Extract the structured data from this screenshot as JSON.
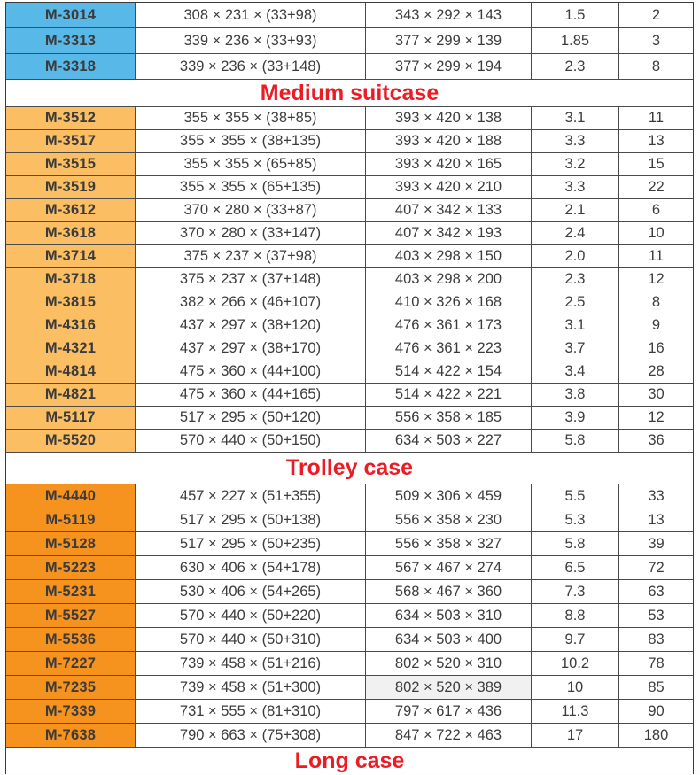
{
  "colors": {
    "blue": "#58B9E8",
    "gold": "#FBBE62",
    "orange": "#F6921E",
    "header_red": "#EC1B24",
    "model_text": "#3b3b3b",
    "highlight": "#F1F1F1"
  },
  "table": {
    "sections": [
      {
        "header": null,
        "model_color": "blue",
        "rows": [
          [
            "M-3014",
            "308 × 231 × (33+98)",
            "343 × 292 × 143",
            "1.5",
            "2"
          ],
          [
            "M-3313",
            "339 × 236 × (33+93)",
            "377 × 299 × 139",
            "1.85",
            "3"
          ],
          [
            "M-3318",
            "339 × 236 × (33+148)",
            "377 × 299 × 194",
            "2.3",
            "8"
          ]
        ]
      },
      {
        "header": "Medium suitcase",
        "model_color": "gold",
        "rows": [
          [
            "M-3512",
            "355 × 355 × (38+85)",
            "393 × 420 × 138",
            "3.1",
            "11"
          ],
          [
            "M-3517",
            "355 × 355 × (38+135)",
            "393 × 420 × 188",
            "3.3",
            "13"
          ],
          [
            "M-3515",
            "355 × 355 × (65+85)",
            "393 × 420 × 165",
            "3.2",
            "15"
          ],
          [
            "M-3519",
            "355 × 355 × (65+135)",
            "393 × 420 × 210",
            "3.3",
            "22"
          ],
          [
            "M-3612",
            "370 × 280 × (33+87)",
            "407 × 342 × 133",
            "2.1",
            "6"
          ],
          [
            "M-3618",
            "370 × 280 × (33+147)",
            "407 × 342 × 193",
            "2.4",
            "10"
          ],
          [
            "M-3714",
            "375 × 237 × (37+98)",
            "403 × 298 × 150",
            "2.0",
            "11"
          ],
          [
            "M-3718",
            "375 × 237 × (37+148)",
            "403 × 298 × 200",
            "2.3",
            "12"
          ],
          [
            "M-3815",
            "382 × 266 × (46+107)",
            "410 × 326 × 168",
            "2.5",
            "8"
          ],
          [
            "M-4316",
            "437 × 297 × (38+120)",
            "476 × 361 × 173",
            "3.1",
            "9"
          ],
          [
            "M-4321",
            "437 × 297 × (38+170)",
            "476 × 361 × 223",
            "3.7",
            "16"
          ],
          [
            "M-4814",
            "475 × 360 × (44+100)",
            "514 × 422 × 154",
            "3.4",
            "28"
          ],
          [
            "M-4821",
            "475 × 360 × (44+165)",
            "514 × 422 × 221",
            "3.8",
            "30"
          ],
          [
            "M-5117",
            "517 × 295 × (50+120)",
            "556 × 358 × 185",
            "3.9",
            "12"
          ],
          [
            "M-5520",
            "570 × 440 × (50+150)",
            "634 × 503 × 227",
            "5.8",
            "36"
          ]
        ]
      },
      {
        "header": "Trolley case",
        "model_color": "orange",
        "highlight": {
          "row": 8,
          "col": 2
        },
        "rows": [
          [
            "M-4440",
            "457 × 227 × (51+355)",
            "509 × 306 × 459",
            "5.5",
            "33"
          ],
          [
            "M-5119",
            "517 × 295 × (50+138)",
            "556 × 358 × 230",
            "5.3",
            "13"
          ],
          [
            "M-5128",
            "517 × 295 × (50+235)",
            "556 × 358 × 327",
            "5.8",
            "39"
          ],
          [
            "M-5223",
            "630 × 406 × (54+178)",
            "567 × 467 × 274",
            "6.5",
            "72"
          ],
          [
            "M-5231",
            "530 × 406 × (54+265)",
            "568 × 467 × 360",
            "7.3",
            "63"
          ],
          [
            "M-5527",
            "570 × 440 × (50+220)",
            "634 × 503 × 310",
            "8.8",
            "53"
          ],
          [
            "M-5536",
            "570 × 440 × (50+310)",
            "634 × 503 × 400",
            "9.7",
            "83"
          ],
          [
            "M-7227",
            "739 × 458 × (51+216)",
            "802 × 520 × 310",
            "10.2",
            "78"
          ],
          [
            "M-7235",
            "739 × 458 × (51+300)",
            "802 × 520 × 389",
            "10",
            "85"
          ],
          [
            "M-7339",
            "731 × 555 × (81+310)",
            "797 × 617 × 436",
            "11.3",
            "90"
          ],
          [
            "M-7638",
            "790 × 663 × (75+308)",
            "847 × 722 × 463",
            "17",
            "180"
          ]
        ]
      },
      {
        "header": "Long case",
        "model_color": "orange",
        "rows": []
      }
    ]
  }
}
